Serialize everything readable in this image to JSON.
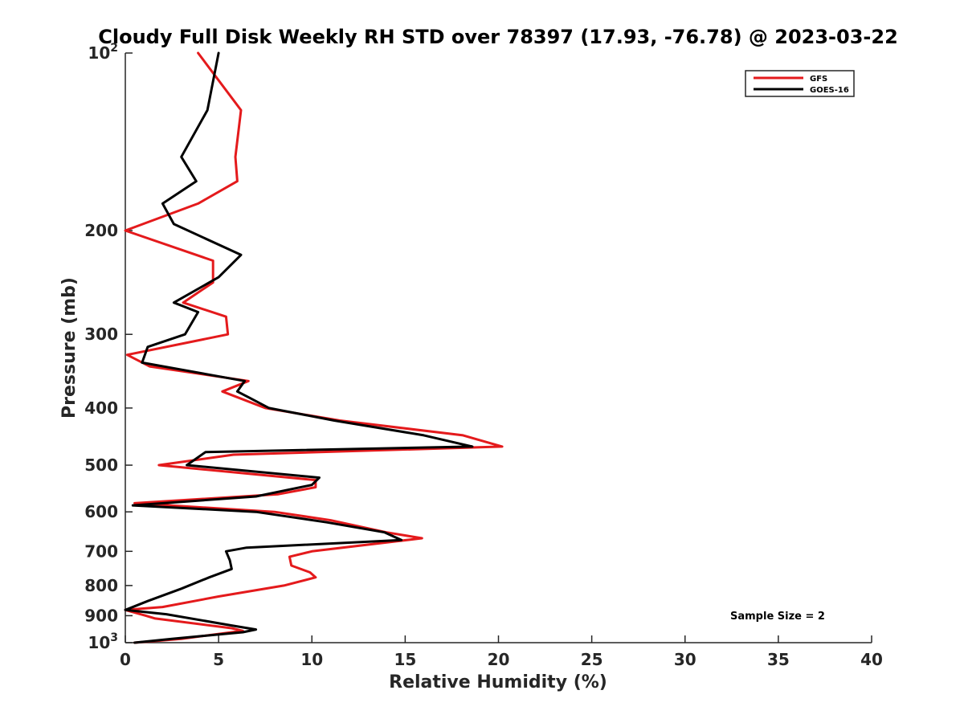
{
  "chart_data": {
    "type": "line",
    "title": "Cloudy Full Disk Weekly RH STD over 78397 (17.93, -76.78) @ 2023-03-22",
    "xlabel": "Relative Humidity (%)",
    "ylabel": "Pressure (mb)",
    "xlim": [
      0,
      40
    ],
    "ylim": [
      1000,
      100
    ],
    "yscale": "log",
    "x_ticks": [
      0,
      5,
      10,
      15,
      20,
      25,
      30,
      35,
      40
    ],
    "y_ticks": [
      {
        "value": 100,
        "base": "10",
        "exp": "2"
      },
      {
        "value": 200,
        "label": "200"
      },
      {
        "value": 300,
        "label": "300"
      },
      {
        "value": 400,
        "label": "400"
      },
      {
        "value": 500,
        "label": "500"
      },
      {
        "value": 600,
        "label": "600"
      },
      {
        "value": 700,
        "label": "700"
      },
      {
        "value": 800,
        "label": "800"
      },
      {
        "value": 900,
        "label": "900"
      },
      {
        "value": 1000,
        "base": "10",
        "exp": "3"
      }
    ],
    "grid": false,
    "legend_position": "top-right",
    "annotation": "Sample Size = 2",
    "series": [
      {
        "name": "GFS",
        "color": "#e41a1c",
        "points": [
          [
            3.9,
            100
          ],
          [
            6.2,
            125
          ],
          [
            5.9,
            150
          ],
          [
            6.0,
            165
          ],
          [
            3.9,
            180
          ],
          [
            0.0,
            200
          ],
          [
            4.7,
            225
          ],
          [
            4.7,
            245
          ],
          [
            3.1,
            265
          ],
          [
            5.4,
            280
          ],
          [
            5.5,
            300
          ],
          [
            0.1,
            325
          ],
          [
            1.3,
            340
          ],
          [
            6.6,
            360
          ],
          [
            5.2,
            375
          ],
          [
            7.5,
            400
          ],
          [
            11.5,
            420
          ],
          [
            18.1,
            445
          ],
          [
            20.2,
            465
          ],
          [
            5.8,
            480
          ],
          [
            1.8,
            500
          ],
          [
            10.2,
            530
          ],
          [
            10.2,
            545
          ],
          [
            8.2,
            560
          ],
          [
            0.5,
            580
          ],
          [
            8.0,
            600
          ],
          [
            11.0,
            620
          ],
          [
            14.0,
            650
          ],
          [
            15.9,
            665
          ],
          [
            10.0,
            700
          ],
          [
            8.8,
            715
          ],
          [
            8.9,
            740
          ],
          [
            9.9,
            760
          ],
          [
            10.2,
            775
          ],
          [
            8.5,
            800
          ],
          [
            5.0,
            835
          ],
          [
            2.0,
            870
          ],
          [
            0.0,
            880
          ],
          [
            1.1,
            900
          ],
          [
            1.6,
            910
          ],
          [
            5.7,
            945
          ],
          [
            6.3,
            955
          ],
          [
            3.0,
            985
          ],
          [
            0.5,
            1000
          ]
        ]
      },
      {
        "name": "GOES-16",
        "color": "#000000",
        "points": [
          [
            5.0,
            100
          ],
          [
            4.4,
            125
          ],
          [
            3.0,
            150
          ],
          [
            3.8,
            165
          ],
          [
            2.0,
            180
          ],
          [
            2.6,
            195
          ],
          [
            6.2,
            220
          ],
          [
            5.0,
            240
          ],
          [
            2.6,
            265
          ],
          [
            3.9,
            275
          ],
          [
            3.2,
            300
          ],
          [
            1.2,
            315
          ],
          [
            0.9,
            335
          ],
          [
            6.4,
            360
          ],
          [
            6.0,
            375
          ],
          [
            6.7,
            385
          ],
          [
            7.7,
            400
          ],
          [
            11.2,
            420
          ],
          [
            16.0,
            445
          ],
          [
            18.6,
            465
          ],
          [
            4.3,
            475
          ],
          [
            3.3,
            500
          ],
          [
            10.4,
            525
          ],
          [
            10.0,
            540
          ],
          [
            7.0,
            565
          ],
          [
            0.4,
            585
          ],
          [
            7.0,
            600
          ],
          [
            10.8,
            625
          ],
          [
            13.9,
            650
          ],
          [
            14.8,
            670
          ],
          [
            6.5,
            690
          ],
          [
            5.4,
            700
          ],
          [
            5.6,
            725
          ],
          [
            5.7,
            750
          ],
          [
            4.5,
            775
          ],
          [
            3.0,
            810
          ],
          [
            1.2,
            850
          ],
          [
            0.0,
            880
          ],
          [
            2.2,
            895
          ],
          [
            5.7,
            935
          ],
          [
            7.0,
            950
          ],
          [
            6.3,
            960
          ],
          [
            2.5,
            985
          ],
          [
            0.5,
            1000
          ]
        ]
      }
    ]
  }
}
